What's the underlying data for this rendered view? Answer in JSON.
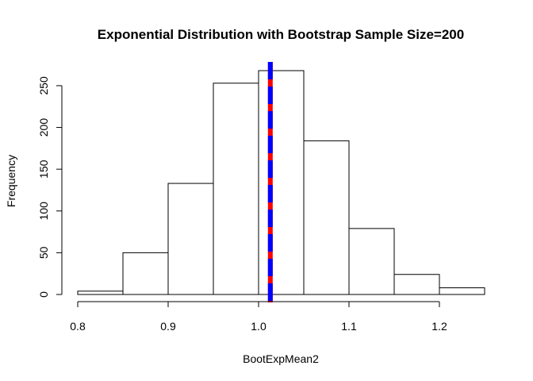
{
  "chart_data": {
    "type": "bar",
    "subtype": "histogram",
    "title": "Exponential Distribution with Bootstrap Sample Size=200",
    "xlabel": "BootExpMean2",
    "ylabel": "Frequency",
    "bins": [
      {
        "x0": 0.8,
        "x1": 0.85,
        "count": 4
      },
      {
        "x0": 0.85,
        "x1": 0.9,
        "count": 50
      },
      {
        "x0": 0.9,
        "x1": 0.95,
        "count": 133
      },
      {
        "x0": 0.95,
        "x1": 1.0,
        "count": 253
      },
      {
        "x0": 1.0,
        "x1": 1.05,
        "count": 268
      },
      {
        "x0": 1.05,
        "x1": 1.1,
        "count": 184
      },
      {
        "x0": 1.1,
        "x1": 1.15,
        "count": 79
      },
      {
        "x0": 1.15,
        "x1": 1.2,
        "count": 24
      },
      {
        "x0": 1.2,
        "x1": 1.25,
        "count": 8
      }
    ],
    "x_ticks": [
      "0.8",
      "0.9",
      "1.0",
      "1.1",
      "1.2"
    ],
    "y_ticks": [
      "0",
      "50",
      "100",
      "150",
      "200",
      "250"
    ],
    "xlim": [
      0.8,
      1.25
    ],
    "ylim": [
      0,
      268
    ],
    "vline": {
      "x": 1.013,
      "colors": [
        "#ff0000",
        "#0000ff"
      ],
      "style": "dashed-overlay"
    },
    "grid": false,
    "legend": "none"
  }
}
